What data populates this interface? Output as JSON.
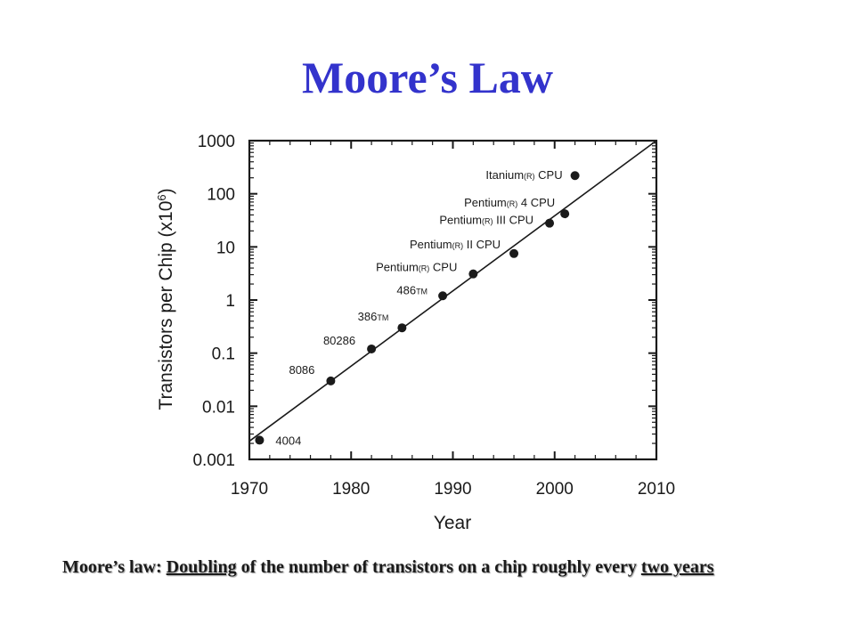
{
  "slide": {
    "title": "Moore’s Law",
    "caption": {
      "prefix": "Moore’s law: ",
      "emphasis": "Doubling",
      "middle": " of the number of transistors on a chip roughly every ",
      "emphasis2": "two years"
    }
  },
  "colors": {
    "title": "#3333cc",
    "ink": "#1a1a1a"
  },
  "chart_data": {
    "type": "scatter",
    "xlabel": "Year",
    "ylabel_main": "Transistors per Chip (x10",
    "ylabel_sup": "6",
    "ylabel_close": ")",
    "y_scale": "log",
    "xlim": [
      1970,
      2010
    ],
    "ylim": [
      0.001,
      1000
    ],
    "x_ticks": [
      1970,
      1980,
      1990,
      2000,
      2010
    ],
    "x_tick_labels": [
      "1970",
      "1980",
      "1990",
      "2000",
      "2010"
    ],
    "y_ticks": [
      0.001,
      0.01,
      0.1,
      1,
      10,
      100,
      1000
    ],
    "y_tick_labels": [
      "0.001",
      "0.01",
      "0.1",
      "1",
      "10",
      "100",
      "1000"
    ],
    "grid": false,
    "trend_line": {
      "x": [
        1970,
        2010
      ],
      "y": [
        0.0022,
        1000
      ]
    },
    "points": [
      {
        "year": 1971,
        "value": 0.0023,
        "label": "4004"
      },
      {
        "year": 1978,
        "value": 0.03,
        "label": "8086"
      },
      {
        "year": 1982,
        "value": 0.12,
        "label": "80286"
      },
      {
        "year": 1985,
        "value": 0.3,
        "label": "386",
        "suffix": "TM"
      },
      {
        "year": 1989,
        "value": 1.2,
        "label": "486",
        "suffix": "TM"
      },
      {
        "year": 1992,
        "value": 3.1,
        "label": "Pentium",
        "suffix": "(R)",
        "tail": " CPU"
      },
      {
        "year": 1996,
        "value": 7.5,
        "label": "Pentium",
        "suffix": "(R)",
        "tail": " II CPU"
      },
      {
        "year": 1999.5,
        "value": 28,
        "label": "Pentium",
        "suffix": "(R)",
        "tail": " III CPU"
      },
      {
        "year": 2001,
        "value": 42,
        "label": "Pentium",
        "suffix": "(R)",
        "tail": " 4 CPU"
      },
      {
        "year": 2002,
        "value": 220,
        "label": "Itanium",
        "suffix": "(R)",
        "tail": " CPU"
      }
    ]
  }
}
